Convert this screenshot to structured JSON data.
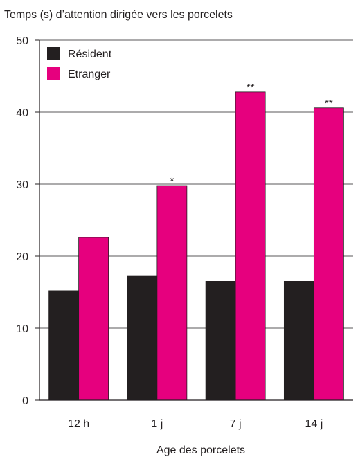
{
  "chart_data": {
    "type": "bar",
    "ylabel": "Temps (s) d’attention dirigée vers les porcelets",
    "xlabel": "Age des porcelets",
    "categories": [
      "12 h",
      "1 j",
      "7 j",
      "14 j"
    ],
    "ylim": [
      0,
      50
    ],
    "yticks": [
      0,
      10,
      20,
      30,
      40,
      50
    ],
    "grid": "horizontal",
    "legend_position": "top-left",
    "series": [
      {
        "name": "Résident",
        "color": "#231f20",
        "values": [
          15.2,
          17.3,
          16.5,
          16.5
        ]
      },
      {
        "name": "Etranger",
        "color": "#e6007e",
        "values": [
          22.6,
          29.8,
          42.8,
          40.6
        ]
      }
    ],
    "annotations": [
      "",
      "*",
      "**",
      "**"
    ]
  }
}
